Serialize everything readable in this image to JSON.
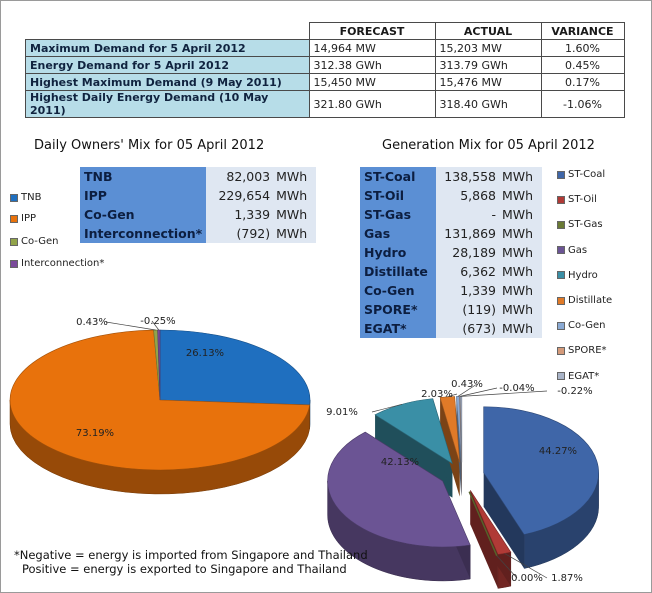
{
  "summary": {
    "headers": [
      "",
      "FORECAST",
      "ACTUAL",
      "VARIANCE"
    ],
    "rows": [
      {
        "label": "Maximum Demand for 5 April 2012",
        "forecast": "14,964  MW",
        "actual": "15,203  MW",
        "variance": "1.60%"
      },
      {
        "label": "Energy Demand for 5 April 2012",
        "forecast": "312.38  GWh",
        "actual": "313.79  GWh",
        "variance": "0.45%"
      },
      {
        "label": "Highest Maximum Demand (9 May 2011)",
        "forecast": "15,450  MW",
        "actual": "15,476  MW",
        "variance": "0.17%"
      },
      {
        "label": "Highest Daily Energy Demand (10 May 2011)",
        "forecast": "321.80  GWh",
        "actual": "318.40  GWh",
        "variance": "-1.06%"
      }
    ]
  },
  "owners": {
    "title": "Daily Owners' Mix for 05 April 2012",
    "unit": "MWh",
    "rows": [
      {
        "name": "TNB",
        "value": "82,003"
      },
      {
        "name": "IPP",
        "value": "229,654"
      },
      {
        "name": "Co-Gen",
        "value": "1,339"
      },
      {
        "name": "Interconnection*",
        "value": "(792)"
      }
    ]
  },
  "generation": {
    "title": "Generation Mix for 05 April 2012",
    "unit": "MWh",
    "rows": [
      {
        "name": "ST-Coal",
        "value": "138,558"
      },
      {
        "name": "ST-Oil",
        "value": "5,868"
      },
      {
        "name": "ST-Gas",
        "value": "-"
      },
      {
        "name": "Gas",
        "value": "131,869"
      },
      {
        "name": "Hydro",
        "value": "28,189"
      },
      {
        "name": "Distillate",
        "value": "6,362"
      },
      {
        "name": "Co-Gen",
        "value": "1,339"
      },
      {
        "name": "SPORE*",
        "value": "(119)"
      },
      {
        "name": "EGAT*",
        "value": "(673)"
      }
    ]
  },
  "notes": {
    "line1": "*Negative = energy is imported from Singapore and Thailand",
    "line2": "Positive = energy is exported to Singapore and Thailand"
  },
  "chart_data": [
    {
      "type": "pie",
      "title": "Daily Owners' Mix for 05 April 2012",
      "legend_position": "left",
      "slices": [
        {
          "name": "TNB",
          "value": 26.13,
          "label": "26.13%",
          "color": "#1f6fbf"
        },
        {
          "name": "IPP",
          "value": 73.19,
          "label": "73.19%",
          "color": "#e8720c"
        },
        {
          "name": "Co-Gen",
          "value": 0.43,
          "label": "0.43%",
          "color": "#92a44a"
        },
        {
          "name": "Interconnection*",
          "value": 0.25,
          "label": "-0.25%",
          "color": "#7a4a9a"
        }
      ]
    },
    {
      "type": "pie",
      "title": "Generation Mix for 05 April 2012",
      "legend_position": "right",
      "slices": [
        {
          "name": "ST-Coal",
          "value": 44.27,
          "label": "44.27%",
          "color": "#3f66a8"
        },
        {
          "name": "ST-Oil",
          "value": 1.87,
          "label": "1.87%",
          "color": "#b03a36"
        },
        {
          "name": "ST-Gas",
          "value": 0.0,
          "label": "0.00%",
          "color": "#6a7a34"
        },
        {
          "name": "Gas",
          "value": 42.13,
          "label": "42.13%",
          "color": "#6b5494"
        },
        {
          "name": "Hydro",
          "value": 9.01,
          "label": "9.01%",
          "color": "#3a8fa6"
        },
        {
          "name": "Distillate",
          "value": 2.03,
          "label": "2.03%",
          "color": "#e07a28"
        },
        {
          "name": "Co-Gen",
          "value": 0.43,
          "label": "0.43%",
          "color": "#8aaad4"
        },
        {
          "name": "SPORE*",
          "value": 0.04,
          "label": "-0.04%",
          "color": "#d49a7a"
        },
        {
          "name": "EGAT*",
          "value": 0.22,
          "label": "-0.22%",
          "color": "#a9b4c8"
        }
      ]
    }
  ]
}
